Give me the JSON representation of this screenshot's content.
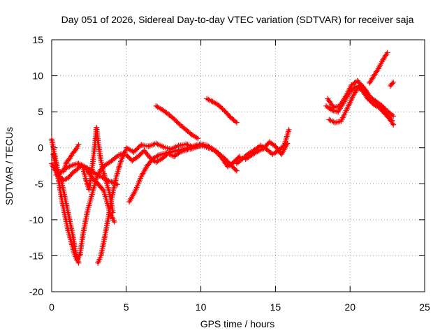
{
  "chart_data": {
    "type": "scatter",
    "title": "Day 051 of 2026, Sidereal Day-to-day VTEC variation (SDTVAR) for receiver saja",
    "xlabel": "GPS time / hours",
    "ylabel": "SDTVAR / TECUs",
    "xlim": [
      0,
      25
    ],
    "ylim": [
      -20,
      15
    ],
    "x_ticks": [
      "0",
      "5",
      "10",
      "15",
      "20",
      "25"
    ],
    "y_ticks": [
      "15",
      "10",
      "5",
      "0",
      "-5",
      "-10",
      "-15",
      "-20"
    ],
    "grid": true,
    "marker": "+",
    "color": "#ff0000",
    "series": [
      {
        "x": [
          0.0,
          0.2,
          0.4,
          0.6,
          0.8,
          1.0,
          1.2,
          1.4,
          1.6,
          1.8
        ],
        "y": [
          1.2,
          -1.0,
          -3.0,
          -4.2,
          -6.0,
          -8.0,
          -10.0,
          -12.0,
          -14.5,
          -16.0
        ]
      },
      {
        "x": [
          0.0,
          0.2,
          0.5,
          0.8,
          1.1,
          1.4,
          1.7,
          2.0,
          2.3,
          2.6,
          2.9,
          3.1,
          3.3,
          3.5,
          3.7,
          3.9,
          4.2
        ],
        "y": [
          -2.2,
          -3.0,
          -4.0,
          -4.5,
          -4.2,
          -3.5,
          -3.0,
          -2.4,
          -2.9,
          -3.8,
          -4.6,
          -5.0,
          -5.5,
          -6.0,
          -7.5,
          -9.0,
          -10.3
        ]
      },
      {
        "x": [
          0.1,
          0.3,
          0.5,
          0.7,
          0.9,
          1.1,
          1.3,
          1.5,
          1.7,
          1.9,
          2.1,
          2.4,
          2.7,
          3.0,
          3.3,
          3.6,
          3.9,
          4.2,
          4.5,
          4.8
        ],
        "y": [
          -0.9,
          -2.5,
          -5.0,
          -7.5,
          -9.5,
          -11.5,
          -13.0,
          -14.6,
          -15.6,
          -14.8,
          -12.0,
          -8.8,
          -6.5,
          -4.2,
          -3.0,
          -2.4,
          -2.0,
          -1.5,
          -1.0,
          -0.8
        ]
      },
      {
        "x": [
          0.3,
          0.6,
          1.0,
          1.4,
          1.8,
          2.2,
          2.6,
          3.0,
          3.4,
          3.8,
          4.1,
          4.4
        ],
        "y": [
          -3.8,
          -3.4,
          -2.8,
          -2.4,
          -2.2,
          -2.6,
          -3.1,
          -3.7,
          -4.1,
          -4.6,
          -4.8,
          -5.1
        ]
      },
      {
        "x": [
          0.8,
          1.0,
          1.2,
          1.4,
          1.6,
          1.8
        ],
        "y": [
          -3.3,
          -2.0,
          -1.5,
          -0.8,
          -0.3,
          0.4
        ]
      },
      {
        "x": [
          2.1,
          2.3,
          2.5,
          2.7,
          2.9,
          3.0,
          3.1,
          3.3,
          3.5,
          3.7,
          3.9,
          4.1
        ],
        "y": [
          -2.8,
          -4.5,
          -5.8,
          -3.0,
          0.5,
          2.8,
          1.0,
          -1.8,
          -3.6,
          -5.0,
          -6.5,
          -9.0
        ]
      },
      {
        "x": [
          3.1,
          3.3,
          3.5,
          3.7,
          3.9,
          4.1,
          4.3,
          4.5,
          4.7,
          5.0
        ],
        "y": [
          -16.0,
          -15.0,
          -13.0,
          -10.8,
          -8.5,
          -6.2,
          -4.3,
          -2.8,
          -1.5,
          -0.2
        ]
      },
      {
        "x": [
          5.2,
          5.6,
          6.0,
          6.4,
          6.8,
          7.2,
          7.6,
          8.0,
          8.4,
          8.8,
          9.2,
          9.6,
          10.0,
          10.4,
          10.8,
          11.2,
          11.6,
          12.0,
          12.4
        ],
        "y": [
          -7.5,
          -6.0,
          -4.0,
          -2.5,
          -1.5,
          -1.0,
          -0.8,
          -0.6,
          -0.4,
          -0.2,
          0.0,
          0.3,
          0.5,
          0.3,
          -0.2,
          -0.8,
          -1.5,
          -2.4,
          -3.2
        ]
      },
      {
        "x": [
          5.0,
          5.4,
          5.8,
          6.2,
          6.6,
          7.0,
          7.4,
          7.8,
          8.2,
          8.6,
          9.0,
          9.4,
          9.8,
          10.2,
          10.6,
          11.0,
          11.4,
          11.8,
          12.2,
          12.6
        ],
        "y": [
          -1.0,
          -1.8,
          -1.2,
          -0.4,
          -1.4,
          -2.0,
          -1.5,
          -0.8,
          -1.2,
          -0.6,
          -0.3,
          -0.1,
          0.2,
          0.4,
          0.1,
          -0.5,
          -1.4,
          -2.6,
          -2.0,
          -1.2
        ]
      },
      {
        "x": [
          5.0,
          5.5,
          6.0,
          6.5,
          7.0,
          7.5,
          8.0,
          8.5,
          9.0,
          9.5,
          10.0,
          10.5,
          11.0
        ],
        "y": [
          0.0,
          -0.6,
          0.4,
          0.2,
          0.6,
          0.1,
          -0.2,
          0.3,
          0.5,
          0.1,
          0.3,
          0.0,
          -0.4
        ]
      },
      {
        "x": [
          7.0,
          7.4,
          7.8,
          8.2,
          8.6,
          9.0,
          9.4,
          9.8
        ],
        "y": [
          5.8,
          5.3,
          4.7,
          4.0,
          3.2,
          2.5,
          1.8,
          1.3
        ]
      },
      {
        "x": [
          10.4,
          10.8,
          11.2,
          11.6,
          12.0,
          12.4
        ],
        "y": [
          6.8,
          6.4,
          5.9,
          5.1,
          4.2,
          3.5
        ]
      },
      {
        "x": [
          12.4,
          12.8,
          13.2,
          13.6,
          14.0,
          14.4,
          14.8,
          15.2,
          15.6,
          15.9
        ],
        "y": [
          -2.2,
          -1.5,
          -0.8,
          -0.3,
          0.3,
          -0.2,
          -0.9,
          -0.4,
          0.4,
          2.5
        ]
      },
      {
        "x": [
          13.0,
          13.4,
          13.8,
          14.2,
          14.6,
          15.0,
          15.4,
          15.8
        ],
        "y": [
          -1.6,
          -1.0,
          -0.5,
          -0.1,
          0.8,
          0.2,
          -0.9,
          0.6
        ]
      },
      {
        "x": [
          18.4,
          18.8,
          19.2,
          19.6,
          20.0,
          20.4,
          20.8,
          21.2,
          21.6,
          22.0,
          22.4,
          22.8
        ],
        "y": [
          5.8,
          5.2,
          5.0,
          6.4,
          7.8,
          8.5,
          8.0,
          6.8,
          6.0,
          5.5,
          4.6,
          3.8
        ]
      },
      {
        "x": [
          18.5,
          18.9,
          19.3,
          19.7,
          20.1,
          20.5,
          20.9,
          21.3,
          21.7,
          22.1,
          22.5,
          22.9
        ],
        "y": [
          6.8,
          5.6,
          5.8,
          7.1,
          8.7,
          9.3,
          8.4,
          7.1,
          6.5,
          5.9,
          5.1,
          4.4
        ]
      },
      {
        "x": [
          18.6,
          19.0,
          19.4,
          19.8,
          20.2,
          20.6,
          21.0,
          21.4,
          21.8,
          22.2,
          22.6,
          22.9
        ],
        "y": [
          3.9,
          3.5,
          3.7,
          5.4,
          7.2,
          8.6,
          8.1,
          6.9,
          6.2,
          5.1,
          4.2,
          3.2
        ]
      },
      {
        "x": [
          21.3,
          21.6,
          21.9,
          22.2,
          22.5
        ],
        "y": [
          9.0,
          10.0,
          11.0,
          12.2,
          13.2
        ]
      },
      {
        "x": [
          22.7,
          22.9
        ],
        "y": [
          8.6,
          9.1
        ]
      }
    ]
  }
}
